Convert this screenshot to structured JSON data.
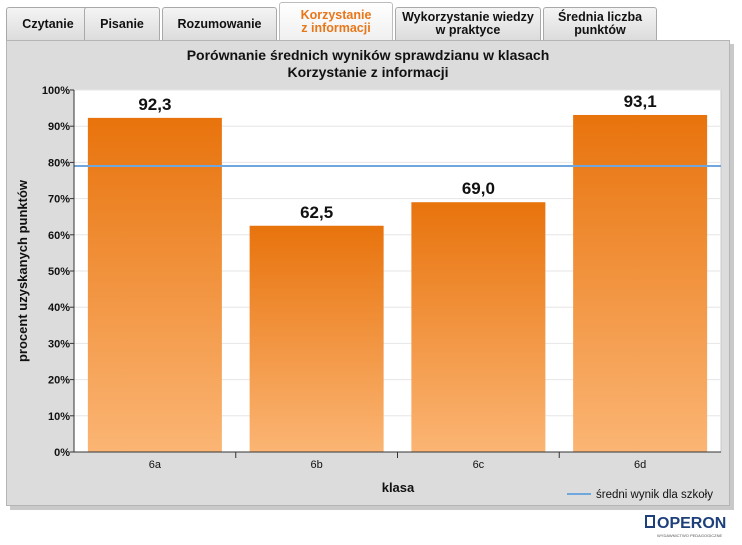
{
  "tabs": [
    {
      "label": "Czytanie"
    },
    {
      "label": "Pisanie"
    },
    {
      "label": "Rozumowanie"
    },
    {
      "label": "Korzystanie\nz informacji",
      "active": true
    },
    {
      "label": "Wykorzystanie wiedzy\nw praktyce"
    },
    {
      "label": "Średnia liczba\npunktów"
    }
  ],
  "colors": {
    "bar_top": "#e8730c",
    "bar_bottom": "#fbb574",
    "reference_line": "#6fa6dd",
    "active_tab_text": "#e8771a"
  },
  "chart_data": {
    "type": "bar",
    "title": "Porównanie średnich wyników sprawdzianu w klasach",
    "subtitle": "Korzystanie z informacji",
    "xlabel": "klasa",
    "ylabel": "procent uzyskanych punktów",
    "categories": [
      "6a",
      "6b",
      "6c",
      "6d"
    ],
    "values": [
      92.3,
      62.5,
      69.0,
      93.1
    ],
    "data_labels": [
      "92,3",
      "62,5",
      "69,0",
      "93,1"
    ],
    "ylim": [
      0,
      100
    ],
    "yticks": [
      "0%",
      "10%",
      "20%",
      "30%",
      "40%",
      "50%",
      "60%",
      "70%",
      "80%",
      "90%",
      "100%"
    ],
    "grid": true,
    "reference_line": {
      "name": "średni wynik dla szkoły",
      "value": 79
    },
    "legend_position": "bottom-right"
  },
  "logo": {
    "text": "OPERON",
    "tagline": "WYDAWNICTWO PEDAGOGICZNE"
  }
}
